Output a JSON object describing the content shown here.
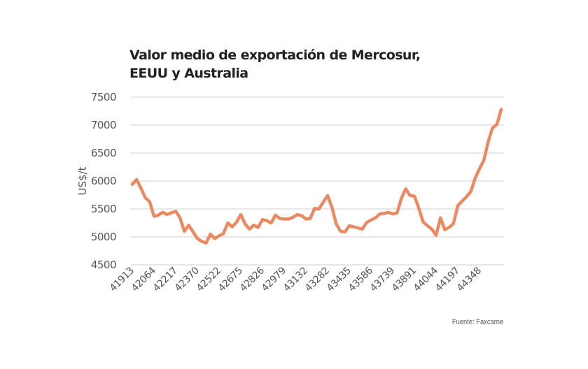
{
  "colors": {
    "line": "#e98a62",
    "grid": "#d9d9d9",
    "text": "#555555",
    "title": "#222222"
  },
  "source": "Fuente: Faxcarne",
  "chart_data": {
    "type": "line",
    "title": "Valor medio de exportación de Mercosur, EEUU y Australia",
    "title_lines": [
      "Valor medio de exportación de Mercosur,",
      "EEUU y Australia"
    ],
    "xlabel": "",
    "ylabel": "US$/t",
    "ylim": [
      4500,
      7500
    ],
    "yticks": [
      4500,
      5000,
      5500,
      6000,
      6500,
      7000,
      7500
    ],
    "xtick_labels": [
      "41913",
      "42064",
      "42217",
      "42370",
      "42522",
      "42675",
      "42826",
      "42979",
      "43132",
      "43282",
      "43435",
      "43586",
      "43739",
      "43891",
      "44044",
      "44197",
      "44348"
    ],
    "x_label_every": 5,
    "grid": true,
    "legend": "none",
    "series": [
      {
        "name": "Valor medio de exportación",
        "values": [
          5940,
          6025,
          5870,
          5700,
          5630,
          5370,
          5390,
          5440,
          5400,
          5430,
          5460,
          5340,
          5100,
          5210,
          5090,
          4970,
          4920,
          4890,
          5050,
          4970,
          5020,
          5060,
          5250,
          5180,
          5260,
          5400,
          5230,
          5140,
          5210,
          5170,
          5310,
          5290,
          5250,
          5390,
          5330,
          5320,
          5320,
          5350,
          5400,
          5380,
          5320,
          5330,
          5510,
          5500,
          5620,
          5740,
          5530,
          5230,
          5100,
          5090,
          5200,
          5180,
          5160,
          5140,
          5260,
          5300,
          5340,
          5410,
          5420,
          5440,
          5410,
          5430,
          5690,
          5860,
          5740,
          5730,
          5520,
          5270,
          5200,
          5140,
          5030,
          5340,
          5130,
          5170,
          5240,
          5560,
          5640,
          5720,
          5810,
          6050,
          6220,
          6370,
          6700,
          6950,
          7010,
          7280
        ]
      }
    ]
  }
}
